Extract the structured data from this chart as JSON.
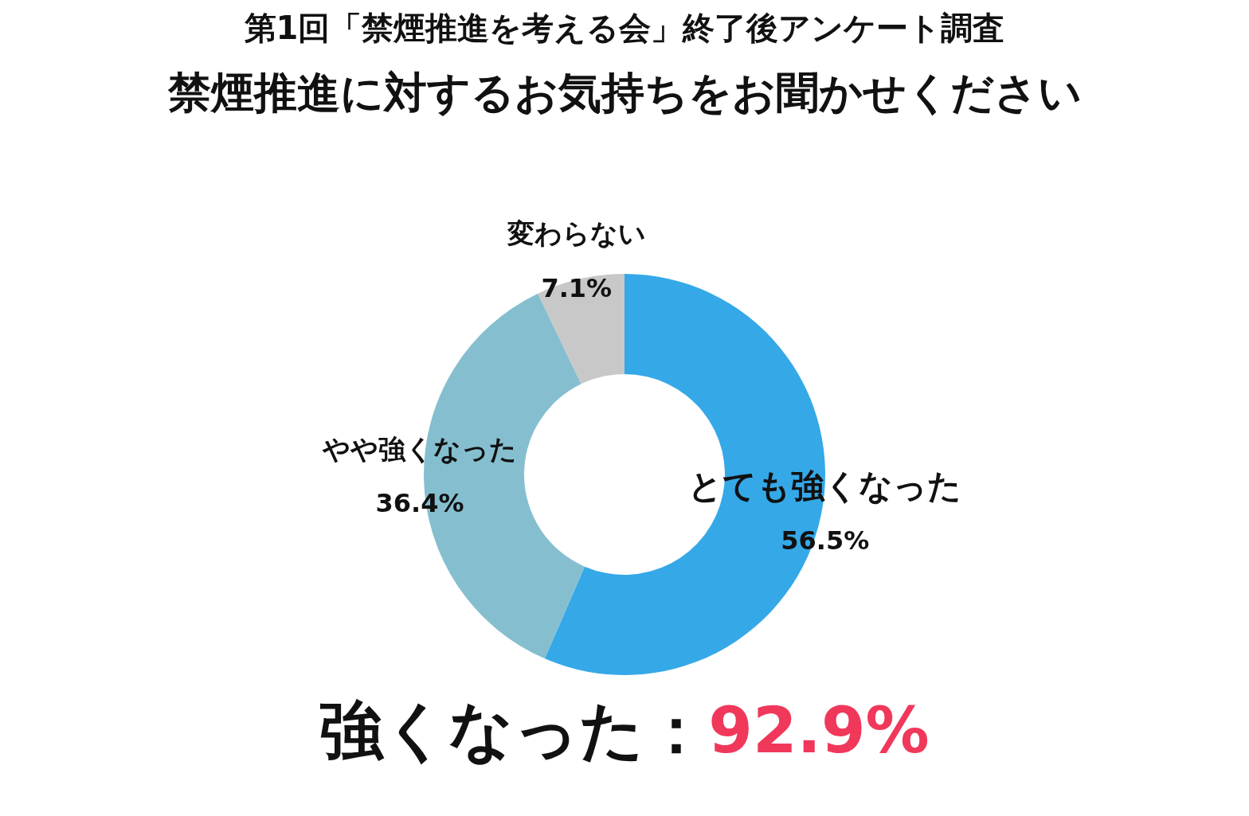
{
  "chart_data": {
    "type": "donut",
    "title": "第1回「禁煙推進を考える会」終了後アンケート調査",
    "subtitle": "禁煙推進に対するお気持ちをお聞かせください",
    "categories": [
      "とても強くなった",
      "やや強くなった",
      "変わらない"
    ],
    "values": [
      56.5,
      36.4,
      7.1
    ],
    "colors": [
      "#35a8e8",
      "#85bfcf",
      "#c8c8c8"
    ],
    "value_labels": [
      "56.5%",
      "36.4%",
      "7.1%"
    ],
    "annotations": [
      "強くなった：",
      "92.9%"
    ],
    "legend": false
  }
}
